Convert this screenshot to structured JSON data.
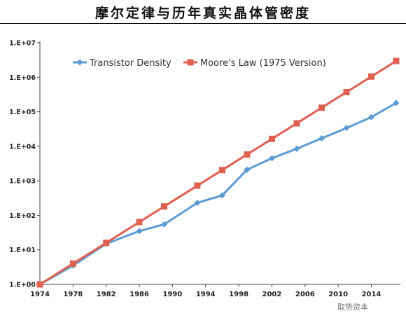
{
  "title": "摩尔定律与历年真实晶体管密度",
  "watermark": "取势资本",
  "chart_data": {
    "type": "line",
    "title": "摩尔定律与历年真实晶体管密度",
    "xlabel": "",
    "ylabel": "",
    "x_ticks": [
      "1974",
      "1978",
      "1982",
      "1986",
      "1990",
      "1994",
      "1998",
      "2002",
      "2006",
      "2010",
      "2014"
    ],
    "y_ticks": [
      "1.E+00",
      "1.E+01",
      "1.E+02",
      "1.E+03",
      "1.E+04",
      "1.E+05",
      "1.E+06",
      "1.E+07"
    ],
    "xlim": [
      1974,
      2017
    ],
    "ylim": [
      1,
      10000000
    ],
    "y_scale": "log",
    "grid": false,
    "legend_position": "top-left",
    "series": [
      {
        "name": "Transistor Density",
        "color": "#5b9bd5",
        "marker": "diamond",
        "points": [
          {
            "x": 1974,
            "y": 1
          },
          {
            "x": 1978,
            "y": 3.5
          },
          {
            "x": 1982,
            "y": 15
          },
          {
            "x": 1986,
            "y": 35
          },
          {
            "x": 1989,
            "y": 55
          },
          {
            "x": 1993,
            "y": 230
          },
          {
            "x": 1996,
            "y": 380
          },
          {
            "x": 1999,
            "y": 2100
          },
          {
            "x": 2002,
            "y": 4500
          },
          {
            "x": 2005,
            "y": 8500
          },
          {
            "x": 2008,
            "y": 17000
          },
          {
            "x": 2011,
            "y": 34000
          },
          {
            "x": 2014,
            "y": 70000
          },
          {
            "x": 2017,
            "y": 180000
          }
        ]
      },
      {
        "name": "Moore's Law (1975 Version)",
        "color": "#e06050",
        "marker": "square",
        "points": [
          {
            "x": 1974,
            "y": 1
          },
          {
            "x": 1978,
            "y": 4
          },
          {
            "x": 1982,
            "y": 16
          },
          {
            "x": 1986,
            "y": 64
          },
          {
            "x": 1989,
            "y": 181
          },
          {
            "x": 1993,
            "y": 724
          },
          {
            "x": 1996,
            "y": 2048
          },
          {
            "x": 1999,
            "y": 5793
          },
          {
            "x": 2002,
            "y": 16384
          },
          {
            "x": 2005,
            "y": 46341
          },
          {
            "x": 2008,
            "y": 131072
          },
          {
            "x": 2011,
            "y": 370728
          },
          {
            "x": 2014,
            "y": 1048576
          },
          {
            "x": 2017,
            "y": 2965820
          }
        ]
      }
    ]
  }
}
